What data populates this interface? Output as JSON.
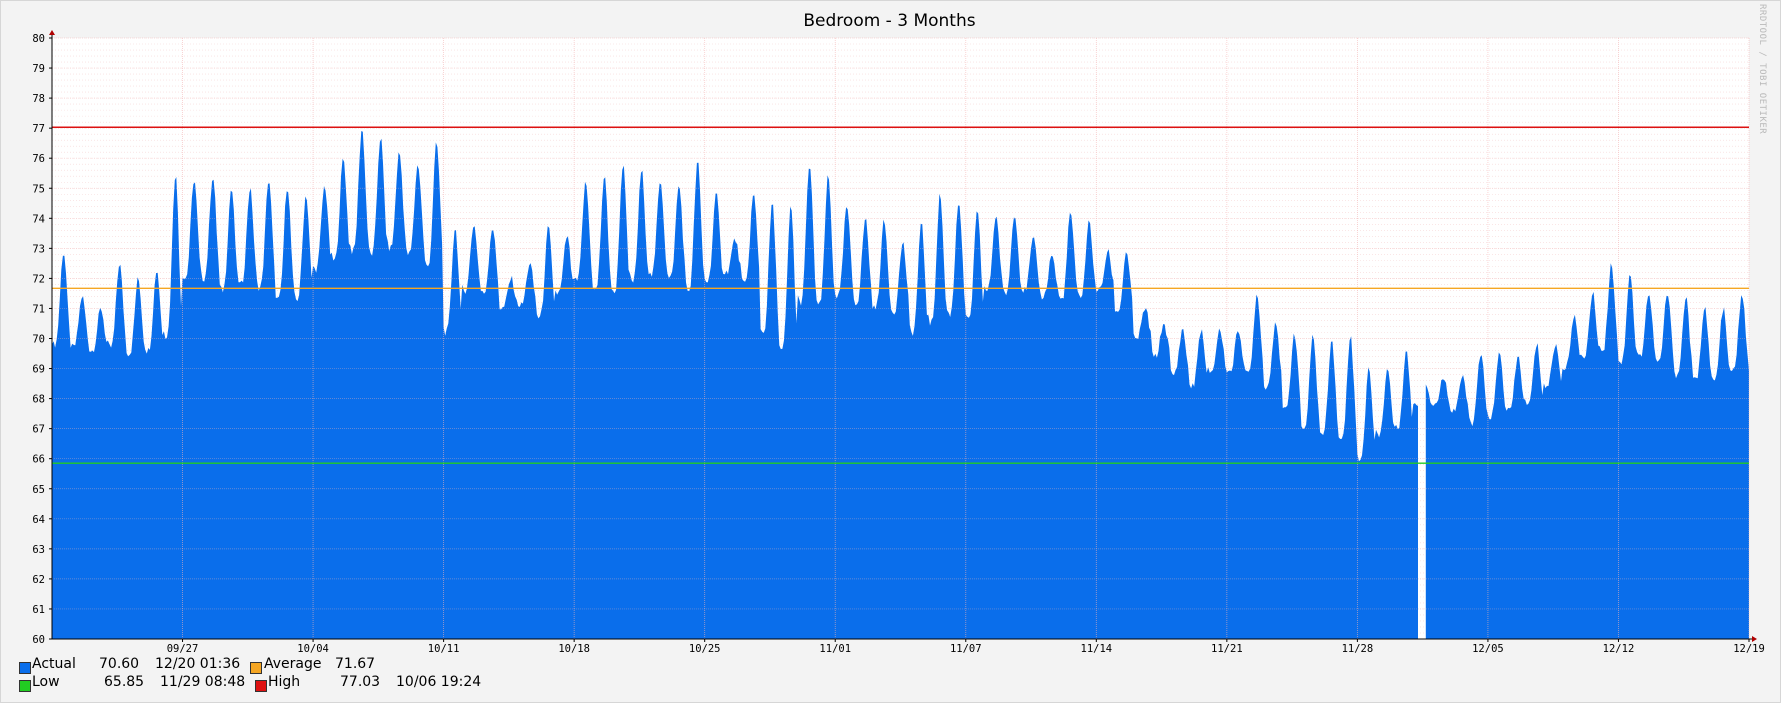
{
  "window_title": "Bedroom - 3 Months",
  "watermark": "RRDTOOL / TOBI OETIKER",
  "colors": {
    "actual": "#0A6EEB",
    "average": "#F5A623",
    "low": "#22CC22",
    "high": "#DD1111",
    "grid": "#F4B4B4",
    "background": "#F3F3F3",
    "plot_background": "#FFFFFF"
  },
  "legend": {
    "actual": {
      "label": "Actual",
      "value": "70.60",
      "time": "12/20 01:36"
    },
    "average": {
      "label": "Average",
      "value": "71.67"
    },
    "low": {
      "label": "Low",
      "value": "65.85",
      "time": "11/29 08:48"
    },
    "high": {
      "label": "High",
      "value": "77.03",
      "time": "10/06 19:24"
    }
  },
  "chart_data": {
    "type": "area",
    "title": "Bedroom - 3 Months",
    "xlabel": "",
    "ylabel": "",
    "ylim": [
      60,
      80
    ],
    "y_ticks": [
      60,
      61,
      62,
      63,
      64,
      65,
      66,
      67,
      68,
      69,
      70,
      71,
      72,
      73,
      74,
      75,
      76,
      77,
      78,
      79,
      80
    ],
    "x_range_days": [
      0,
      91
    ],
    "x_tick_labels": [
      {
        "day": 7,
        "label": "09/27"
      },
      {
        "day": 14,
        "label": "10/04"
      },
      {
        "day": 21,
        "label": "10/11"
      },
      {
        "day": 28,
        "label": "10/18"
      },
      {
        "day": 35,
        "label": "10/25"
      },
      {
        "day": 42,
        "label": "11/01"
      },
      {
        "day": 49,
        "label": "11/07"
      },
      {
        "day": 56,
        "label": "11/14"
      },
      {
        "day": 63,
        "label": "11/21"
      },
      {
        "day": 70,
        "label": "11/28"
      },
      {
        "day": 77,
        "label": "12/05"
      },
      {
        "day": 84,
        "label": "12/12"
      },
      {
        "day": 91,
        "label": "12/19"
      }
    ],
    "reference_lines": [
      {
        "name": "High",
        "value": 77.03
      },
      {
        "name": "Average",
        "value": 71.67
      },
      {
        "name": "Low",
        "value": 65.85
      }
    ],
    "series": [
      {
        "name": "Actual",
        "daily_lows": [
          69.8,
          69.7,
          69.6,
          69.7,
          69.5,
          69.6,
          70.1,
          72.0,
          72.0,
          71.6,
          71.8,
          71.7,
          71.3,
          71.3,
          72.3,
          72.6,
          72.9,
          72.8,
          73.0,
          72.8,
          72.4,
          70.2,
          71.6,
          71.5,
          71.0,
          71.1,
          70.7,
          71.5,
          71.9,
          71.6,
          71.5,
          71.9,
          72.1,
          72.0,
          71.6,
          71.9,
          72.2,
          71.8,
          70.2,
          69.6,
          71.2,
          71.1,
          71.4,
          71.2,
          71.0,
          70.9,
          70.2,
          70.5,
          70.8,
          70.6,
          71.6,
          71.5,
          71.6,
          71.4,
          71.3,
          71.4,
          71.6,
          70.9,
          70.0,
          69.4,
          68.8,
          68.4,
          68.9,
          68.9,
          68.8,
          68.4,
          67.6,
          67.0,
          66.8,
          66.6,
          66.0,
          66.8,
          67.0,
          67.8,
          67.8,
          67.6,
          67.2,
          67.4,
          67.6,
          67.8,
          68.4,
          69.0,
          69.4,
          69.6,
          69.2,
          69.4,
          69.2,
          68.8,
          68.6,
          68.6,
          68.9
        ],
        "daily_highs": [
          72.9,
          71.4,
          71.0,
          72.5,
          72.0,
          72.3,
          75.5,
          75.3,
          75.4,
          75.0,
          75.0,
          75.3,
          75.1,
          74.8,
          75.1,
          76.0,
          77.0,
          76.7,
          76.2,
          75.8,
          76.5,
          73.7,
          73.8,
          73.7,
          72.0,
          72.5,
          73.7,
          73.4,
          75.2,
          75.4,
          75.8,
          75.6,
          75.3,
          75.1,
          75.9,
          74.8,
          73.3,
          74.8,
          74.5,
          74.4,
          75.8,
          75.4,
          74.4,
          74.0,
          73.9,
          73.2,
          73.8,
          74.8,
          74.6,
          74.2,
          74.1,
          74.2,
          73.3,
          72.8,
          74.2,
          73.9,
          72.9,
          72.9,
          71.0,
          70.5,
          70.3,
          70.3,
          70.3,
          70.3,
          71.5,
          70.6,
          70.2,
          70.1,
          70.0,
          70.1,
          69.0,
          69.0,
          69.6,
          68.6,
          68.7,
          68.7,
          69.5,
          69.5,
          69.4,
          69.8,
          69.8,
          70.8,
          71.5,
          72.5,
          72.2,
          71.5,
          71.5,
          71.4,
          71.1,
          71.0,
          71.5
        ],
        "daily_lows_note": "",
        "gaps": [
          {
            "from_day": 73.3,
            "to_day": 73.65
          }
        ]
      }
    ],
    "grid": true,
    "legend_position": "bottom-left"
  }
}
